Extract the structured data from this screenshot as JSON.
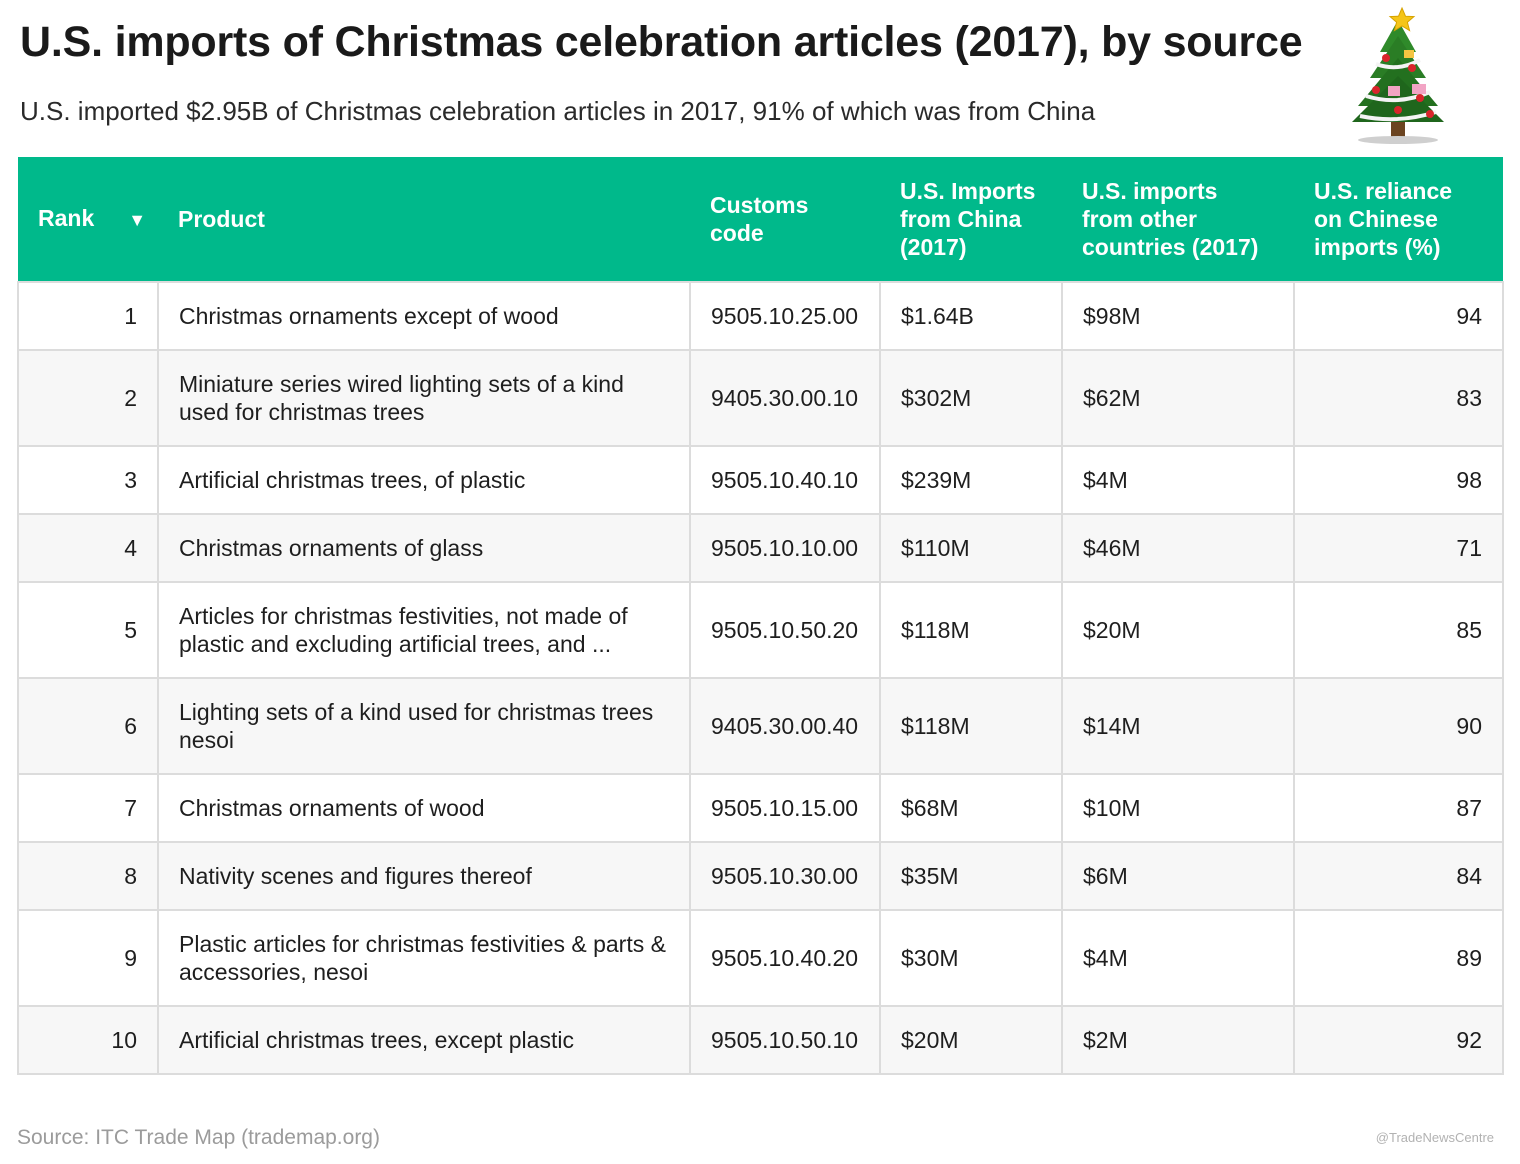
{
  "title": "U.S. imports of Christmas celebration articles (2017), by source",
  "subtitle": "U.S. imported $2.95B of Christmas celebration articles in 2017, 91% of which was from China",
  "columns": {
    "rank": "Rank",
    "sort_indicator": "▼",
    "product": "Product",
    "customs_code": "Customs code",
    "china_imports": "U.S. Imports from China (2017)",
    "other_imports": "U.S. imports from other countries (2017)",
    "reliance": "U.S. reliance on Chinese imports (%)"
  },
  "colors": {
    "header_bg": "#00b98b",
    "stripe": "#f7f7f7",
    "border": "#dcdcdc"
  },
  "icons": {
    "decoration": "christmas-tree-icon",
    "sort": "sort-descending-icon"
  },
  "chart_data": {
    "type": "table",
    "title": "U.S. imports of Christmas celebration articles (2017), by source",
    "headers": [
      "Rank",
      "Product",
      "Customs code",
      "U.S. Imports from China (2017)",
      "U.S. imports from other countries (2017)",
      "U.S. reliance on Chinese imports (%)"
    ],
    "rows": [
      {
        "rank": "1",
        "product": "Christmas ornaments except of wood",
        "code": "9505.10.25.00",
        "china": "$1.64B",
        "other": "$98M",
        "reliance": "94"
      },
      {
        "rank": "2",
        "product": "Miniature series wired lighting sets of a kind used for christmas trees",
        "code": "9405.30.00.10",
        "china": "$302M",
        "other": "$62M",
        "reliance": "83"
      },
      {
        "rank": "3",
        "product": "Artificial christmas trees, of plastic",
        "code": "9505.10.40.10",
        "china": "$239M",
        "other": "$4M",
        "reliance": "98"
      },
      {
        "rank": "4",
        "product": "Christmas ornaments of glass",
        "code": "9505.10.10.00",
        "china": "$110M",
        "other": "$46M",
        "reliance": "71"
      },
      {
        "rank": "5",
        "product": "Articles for christmas festivities, not made of plastic and excluding artificial trees, and ...",
        "code": "9505.10.50.20",
        "china": "$118M",
        "other": "$20M",
        "reliance": "85"
      },
      {
        "rank": "6",
        "product": "Lighting sets of a kind used for christmas trees nesoi",
        "code": "9405.30.00.40",
        "china": "$118M",
        "other": "$14M",
        "reliance": "90"
      },
      {
        "rank": "7",
        "product": "Christmas ornaments of wood",
        "code": "9505.10.15.00",
        "china": "$68M",
        "other": "$10M",
        "reliance": "87"
      },
      {
        "rank": "8",
        "product": "Nativity scenes and figures thereof",
        "code": "9505.10.30.00",
        "china": "$35M",
        "other": "$6M",
        "reliance": "84"
      },
      {
        "rank": "9",
        "product": "Plastic articles for christmas festivities & parts & accessories, nesoi",
        "code": "9505.10.40.20",
        "china": "$30M",
        "other": "$4M",
        "reliance": "89"
      },
      {
        "rank": "10",
        "product": "Artificial christmas trees, except plastic",
        "code": "9505.10.50.10",
        "china": "$20M",
        "other": "$2M",
        "reliance": "92"
      }
    ]
  },
  "source": "Source: ITC Trade Map (trademap.org)",
  "credit": "@TradeNewsCentre"
}
